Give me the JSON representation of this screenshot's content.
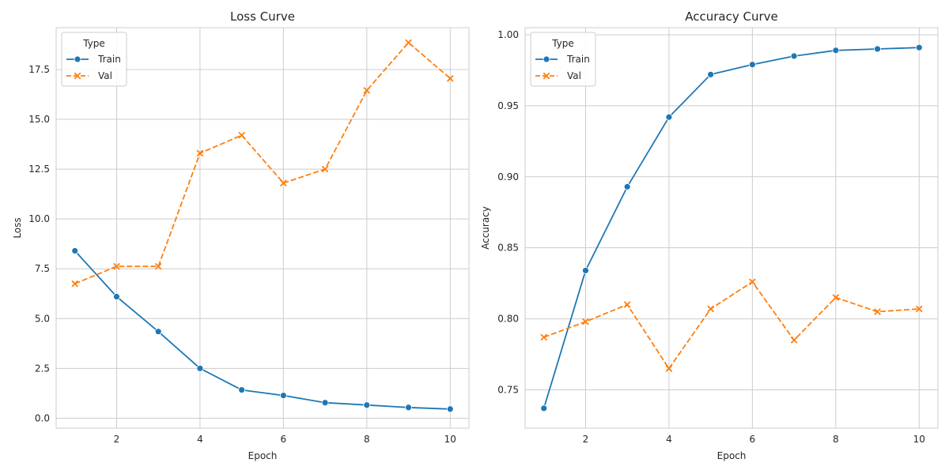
{
  "chart_data": [
    {
      "type": "line",
      "title": "Loss Curve",
      "xlabel": "Epoch",
      "ylabel": "Loss",
      "x": [
        1,
        2,
        3,
        4,
        5,
        6,
        7,
        8,
        9,
        10
      ],
      "xlim": [
        0.55,
        10.45
      ],
      "ylim": [
        -0.5,
        19.6
      ],
      "xticks": [
        2,
        4,
        6,
        8,
        10
      ],
      "xtick_labels": [
        "2",
        "4",
        "6",
        "8",
        "10"
      ],
      "yticks": [
        0,
        2.5,
        5,
        7.5,
        10,
        12.5,
        15,
        17.5
      ],
      "ytick_labels": [
        "0.0",
        "2.5",
        "5.0",
        "7.5",
        "10.0",
        "12.5",
        "15.0",
        "17.5"
      ],
      "grid": true,
      "legend": {
        "title": "Type",
        "placement": "upper-left"
      },
      "series": [
        {
          "name": "Train",
          "color": "#1f77b4",
          "marker": "circle",
          "linestyle": "solid",
          "values": [
            8.4,
            6.1,
            4.35,
            2.5,
            1.42,
            1.14,
            0.78,
            0.66,
            0.54,
            0.46
          ]
        },
        {
          "name": "Val",
          "color": "#ff7f0e",
          "marker": "x",
          "linestyle": "dashed",
          "values": [
            6.75,
            7.62,
            7.62,
            13.3,
            14.2,
            11.8,
            12.5,
            16.45,
            18.85,
            17.05
          ]
        }
      ]
    },
    {
      "type": "line",
      "title": "Accuracy Curve",
      "xlabel": "Epoch",
      "ylabel": "Accuracy",
      "x": [
        1,
        2,
        3,
        4,
        5,
        6,
        7,
        8,
        9,
        10
      ],
      "xlim": [
        0.55,
        10.45
      ],
      "ylim": [
        0.723,
        1.005
      ],
      "xticks": [
        2,
        4,
        6,
        8,
        10
      ],
      "xtick_labels": [
        "2",
        "4",
        "6",
        "8",
        "10"
      ],
      "yticks": [
        0.75,
        0.8,
        0.85,
        0.9,
        0.95,
        1.0
      ],
      "ytick_labels": [
        "0.75",
        "0.80",
        "0.85",
        "0.90",
        "0.95",
        "1.00"
      ],
      "grid": true,
      "legend": {
        "title": "Type",
        "placement": "upper-left"
      },
      "series": [
        {
          "name": "Train",
          "color": "#1f77b4",
          "marker": "circle",
          "linestyle": "solid",
          "values": [
            0.737,
            0.834,
            0.893,
            0.942,
            0.972,
            0.979,
            0.985,
            0.989,
            0.99,
            0.991
          ]
        },
        {
          "name": "Val",
          "color": "#ff7f0e",
          "marker": "x",
          "linestyle": "dashed",
          "values": [
            0.787,
            0.798,
            0.81,
            0.765,
            0.807,
            0.826,
            0.785,
            0.815,
            0.805,
            0.807
          ]
        }
      ]
    }
  ]
}
